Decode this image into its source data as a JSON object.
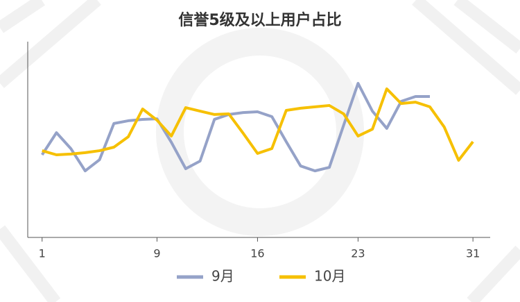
{
  "chart_data": {
    "type": "line",
    "title": "信誉5级及以上用户占比",
    "x": [
      1,
      2,
      3,
      4,
      5,
      6,
      7,
      8,
      9,
      10,
      11,
      12,
      13,
      14,
      15,
      16,
      17,
      18,
      19,
      20,
      21,
      22,
      23,
      24,
      25,
      26,
      27,
      28,
      29,
      30,
      31
    ],
    "series": [
      {
        "name": "9月",
        "color": "#95a2c8",
        "values": [
          42.2,
          53.5,
          45.4,
          34.0,
          39.7,
          58.2,
          59.6,
          60.3,
          60.6,
          48.6,
          35.1,
          39.0,
          60.3,
          62.8,
          63.8,
          64.2,
          61.7,
          48.9,
          36.5,
          34.0,
          35.8,
          57.4,
          78.7,
          64.5,
          55.7,
          69.5,
          72.0,
          72.0,
          null,
          null,
          null
        ]
      },
      {
        "name": "10月",
        "color": "#f6c000",
        "values": [
          44.3,
          42.2,
          42.6,
          43.3,
          44.3,
          46.1,
          51.4,
          65.6,
          59.9,
          51.8,
          66.3,
          64.5,
          62.8,
          63.1,
          53.2,
          42.9,
          45.4,
          64.9,
          66.0,
          66.7,
          67.4,
          63.1,
          51.8,
          55.3,
          75.9,
          68.4,
          69.1,
          66.7,
          56.4,
          39.4,
          48.9
        ]
      }
    ],
    "xlim": [
      0,
      32.2
    ],
    "xticks": [
      1,
      9,
      16,
      23,
      31
    ],
    "ylim": [
      0,
      100
    ],
    "grid": false
  }
}
